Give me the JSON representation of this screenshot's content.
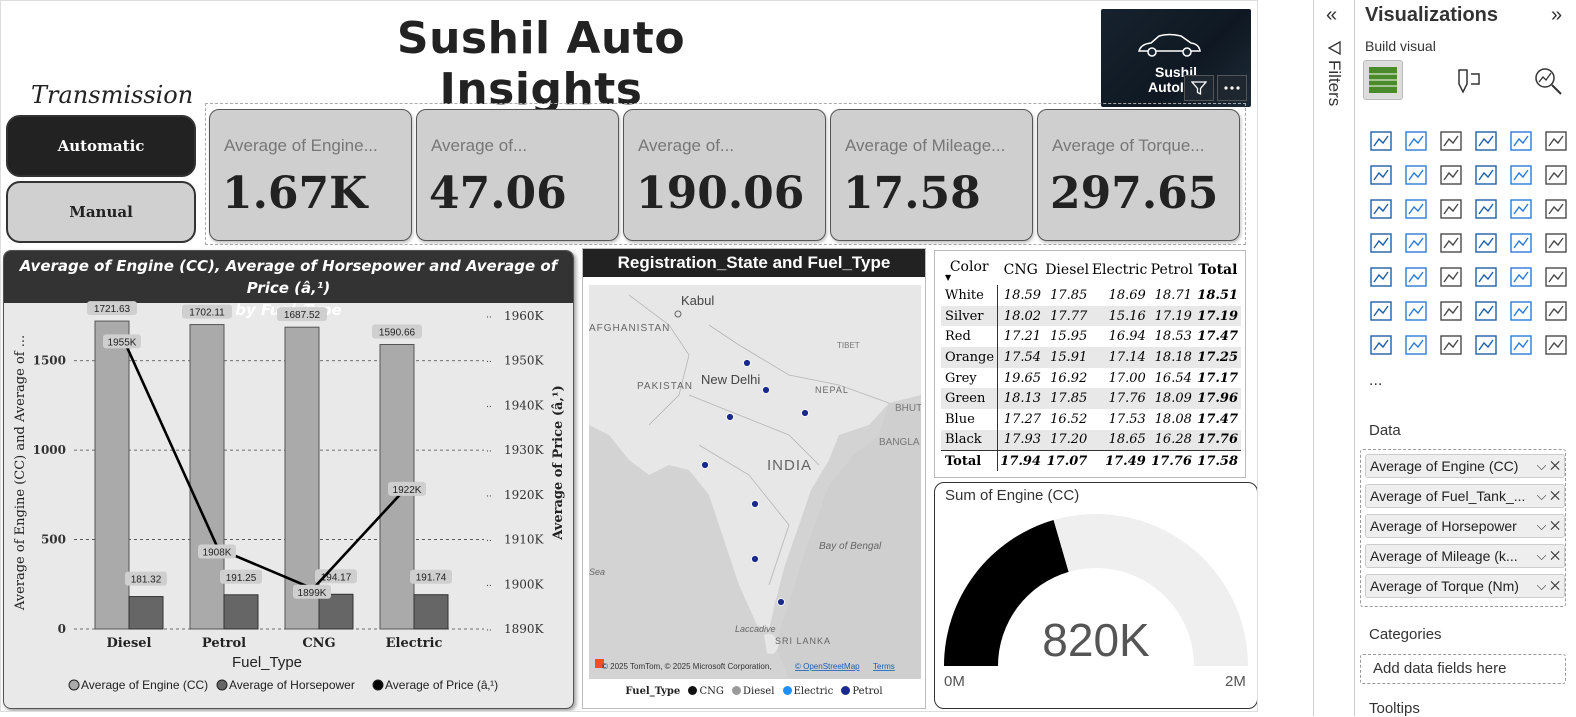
{
  "report": {
    "title": "Sushil Auto Insights",
    "logo_text_1": "Sushil",
    "logo_text_2": "AutoInsi"
  },
  "slicer": {
    "title": "Transmission",
    "options": [
      "Automatic",
      "Manual"
    ],
    "selected": "Automatic"
  },
  "kpis": [
    {
      "label": "Average of Engine...",
      "value": "1.67K"
    },
    {
      "label": "Average of...",
      "value": "47.06"
    },
    {
      "label": "Average of...",
      "value": "190.06"
    },
    {
      "label": "Average of Mileage...",
      "value": "17.58"
    },
    {
      "label": "Average of Torque...",
      "value": "297.65"
    }
  ],
  "combo": {
    "title_line1": "Average of Engine (CC), Average of Horsepower and Average of Price (â‚¹)",
    "title_line2": "by Fuel_Type"
  },
  "chart_data": {
    "type": "bar",
    "categories": [
      "Diesel",
      "Petrol",
      "CNG",
      "Electric"
    ],
    "series": [
      {
        "name": "Average of Engine (CC)",
        "type": "bar",
        "axis": "left",
        "values": [
          1721.63,
          1702.11,
          1687.52,
          1590.66
        ],
        "labels": [
          "1721.63",
          "1702.11",
          "1687.52",
          "1590.66"
        ],
        "color": "#aaaaaa"
      },
      {
        "name": "Average of Horsepower",
        "type": "bar",
        "axis": "left",
        "values": [
          181.32,
          191.25,
          194.17,
          191.74
        ],
        "labels": [
          "181.32",
          "191.25",
          "194.17",
          "191.74"
        ],
        "color": "#666666"
      },
      {
        "name": "Average of Price (â‚¹)",
        "type": "line",
        "axis": "right",
        "values": [
          1955000,
          1908000,
          1899000,
          1922000
        ],
        "labels": [
          "1955K",
          "1908K",
          "1899K",
          "1922K"
        ],
        "color": "#000000"
      }
    ],
    "xlabel": "Fuel_Type",
    "ylabel": "Average of Engine (CC) and Average of ...",
    "y2label": "Average of Price (â‚¹)",
    "ylim": [
      0,
      1750
    ],
    "yticks": [
      0,
      500,
      1000,
      1500
    ],
    "ytick_labels": [
      "0",
      "500",
      "1000",
      "1500"
    ],
    "y2lim": [
      1890000,
      1960000
    ],
    "y2ticks": [
      1890000,
      1900000,
      1910000,
      1920000,
      1930000,
      1940000,
      1950000,
      1960000
    ],
    "y2tick_labels": [
      "1890K",
      "1900K",
      "1910K",
      "1920K",
      "1930K",
      "1940K",
      "1950K",
      "1960K"
    ],
    "grid": true,
    "legend_position": "bottom"
  },
  "map": {
    "title": "Registration_State and Fuel_Type",
    "labels": [
      "Kabul",
      "AFGHANISTAN",
      "PAKISTAN",
      "New Delhi",
      "NEPAL",
      "TIBET",
      "BHUT",
      "BANGLA",
      "INDIA",
      "Sea",
      "Bay of Bengal",
      "Laccadive",
      "SRI LANKA"
    ],
    "attribution": "© 2025 TomTom, © 2025 Microsoft Corporation,",
    "osm_link": "© OpenStreetMap",
    "terms_link": "Terms",
    "legend_title": "Fuel_Type",
    "legend": [
      {
        "name": "CNG",
        "color": "#111111"
      },
      {
        "name": "Diesel",
        "color": "#9a9a9a"
      },
      {
        "name": "Electric",
        "color": "#1e90ff"
      },
      {
        "name": "Petrol",
        "color": "#1a2a8a"
      }
    ]
  },
  "matrix": {
    "header": [
      "Color",
      "CNG",
      "Diesel",
      "Electric",
      "Petrol",
      "Total"
    ],
    "rows": [
      [
        "White",
        "18.59",
        "17.85",
        "18.69",
        "18.71",
        "18.51"
      ],
      [
        "Silver",
        "18.02",
        "17.77",
        "15.16",
        "17.19",
        "17.19"
      ],
      [
        "Red",
        "17.21",
        "15.95",
        "16.94",
        "18.53",
        "17.47"
      ],
      [
        "Orange",
        "17.54",
        "15.91",
        "17.14",
        "18.18",
        "17.25"
      ],
      [
        "Grey",
        "19.65",
        "16.92",
        "17.00",
        "16.54",
        "17.17"
      ],
      [
        "Green",
        "18.13",
        "17.85",
        "17.76",
        "18.09",
        "17.96"
      ],
      [
        "Blue",
        "17.27",
        "16.52",
        "17.53",
        "18.08",
        "17.47"
      ],
      [
        "Black",
        "17.93",
        "17.20",
        "18.65",
        "16.28",
        "17.76"
      ]
    ],
    "total": [
      "Total",
      "17.94",
      "17.07",
      "17.49",
      "17.76",
      "17.58"
    ]
  },
  "gauge": {
    "title": "Sum of Engine (CC)",
    "value_label": "820K",
    "min_label": "0M",
    "max_label": "2M",
    "fraction": 0.41
  },
  "filters": {
    "label": "Filters"
  },
  "viz_pane": {
    "title": "Visualizations",
    "subtitle": "Build visual",
    "more": "...",
    "data_label": "Data",
    "fields": [
      "Average of Engine (CC)",
      "Average of Fuel_Tank_...",
      "Average of Horsepower",
      "Average of Mileage (k...",
      "Average of Torque (Nm)"
    ],
    "categories_label": "Categories",
    "add_fields": "Add data fields here",
    "tooltips_label": "Tooltips"
  }
}
